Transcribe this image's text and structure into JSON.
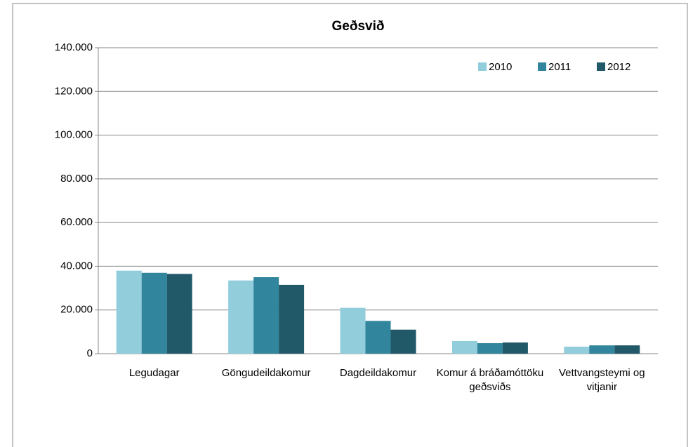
{
  "chart_data": {
    "type": "bar",
    "title": "Geðsvið",
    "categories": [
      "Legudagar",
      "Göngudeildakomur",
      "Dagdeildakomur",
      "Komur á bráðamóttöku geðsviðs",
      "Vettvangsteymi og vitjanir"
    ],
    "series": [
      {
        "name": "2010",
        "color": "#92cddc",
        "values": [
          38000,
          33500,
          21000,
          5800,
          3200
        ]
      },
      {
        "name": "2011",
        "color": "#31859c",
        "values": [
          37000,
          35000,
          15000,
          4800,
          3800
        ]
      },
      {
        "name": "2012",
        "color": "#215968",
        "values": [
          36500,
          31500,
          11000,
          5100,
          3800
        ]
      }
    ],
    "ylim": [
      0,
      140000
    ],
    "yticks": [
      0,
      {
        "value": 20000,
        "label": "20.000"
      },
      {
        "value": 40000,
        "label": "40.000"
      },
      {
        "value": 60000,
        "label": "60.000"
      },
      {
        "value": 80000,
        "label": "80.000"
      },
      {
        "value": 100000,
        "label": "100.000"
      },
      {
        "value": 120000,
        "label": "120.000"
      },
      {
        "value": 140000,
        "label": "140.000"
      }
    ],
    "grid": true,
    "legend": "top-right"
  }
}
